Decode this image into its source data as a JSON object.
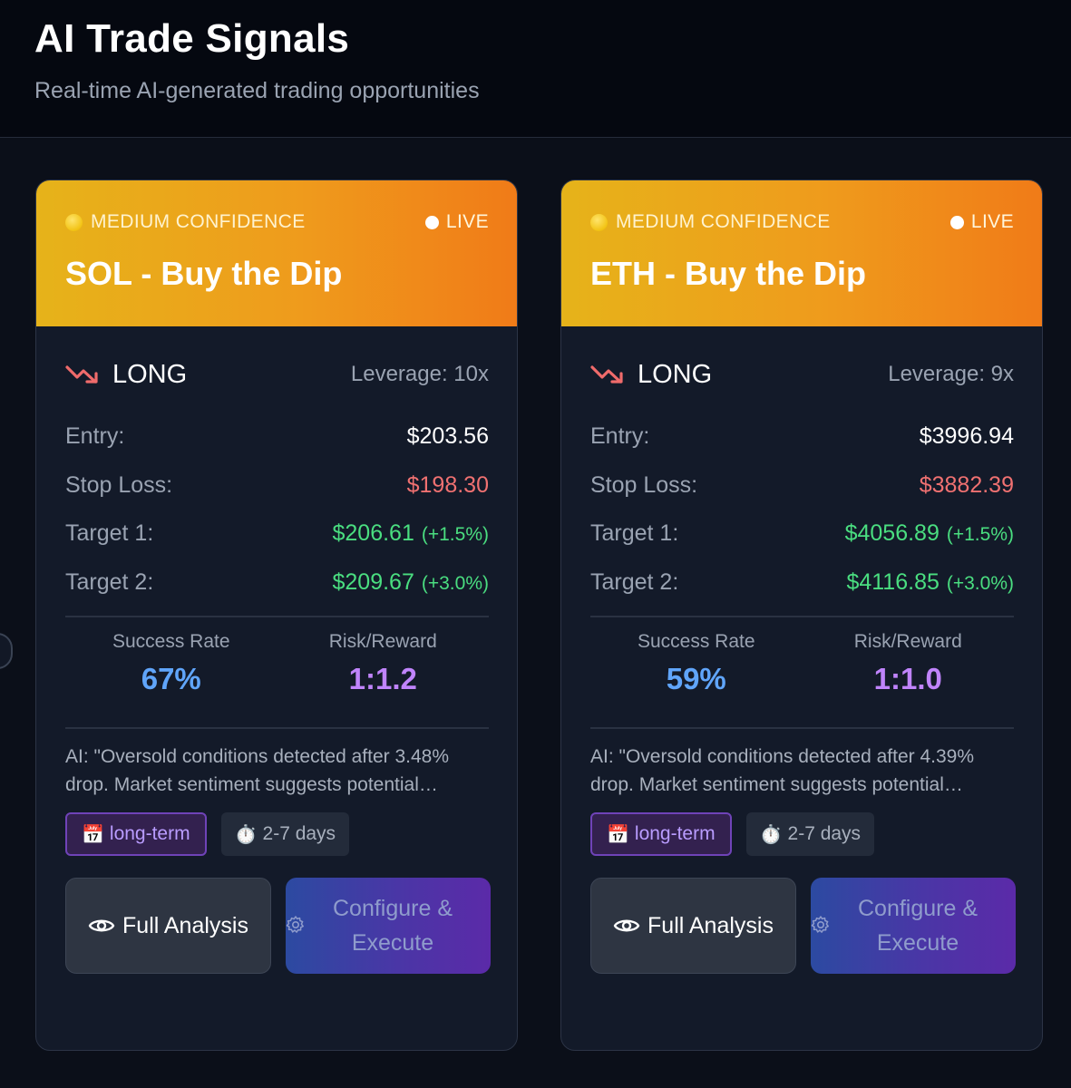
{
  "header": {
    "title": "AI Trade Signals",
    "subtitle": "Real-time AI-generated trading opportunities"
  },
  "cards": [
    {
      "confidence": "MEDIUM CONFIDENCE",
      "live": "LIVE",
      "title": "SOL - Buy the Dip",
      "direction": "LONG",
      "leverage": "Leverage: 10x",
      "entry_label": "Entry:",
      "entry": "$203.56",
      "stop_label": "Stop Loss:",
      "stop": "$198.30",
      "target1_label": "Target 1:",
      "target1": "$206.61",
      "target1_pct": "(+1.5%)",
      "target2_label": "Target 2:",
      "target2": "$209.67",
      "target2_pct": "(+3.0%)",
      "success_label": "Success Rate",
      "success": "67%",
      "rr_label": "Risk/Reward",
      "rr": "1:1.2",
      "ai_text": "AI: \"Oversold conditions detected after 3.48% drop. Market sentiment suggests potential…",
      "tag_term": "long-term",
      "tag_days": "2-7 days",
      "analysis_btn": "Full Analysis",
      "execute_btn": "Configure & Execute"
    },
    {
      "confidence": "MEDIUM CONFIDENCE",
      "live": "LIVE",
      "title": "ETH - Buy the Dip",
      "direction": "LONG",
      "leverage": "Leverage: 9x",
      "entry_label": "Entry:",
      "entry": "$3996.94",
      "stop_label": "Stop Loss:",
      "stop": "$3882.39",
      "target1_label": "Target 1:",
      "target1": "$4056.89",
      "target1_pct": "(+1.5%)",
      "target2_label": "Target 2:",
      "target2": "$4116.85",
      "target2_pct": "(+3.0%)",
      "success_label": "Success Rate",
      "success": "59%",
      "rr_label": "Risk/Reward",
      "rr": "1:1.0",
      "ai_text": "AI: \"Oversold conditions detected after 4.39% drop. Market sentiment suggests potential…",
      "tag_term": "long-term",
      "tag_days": "2-7 days",
      "analysis_btn": "Full Analysis",
      "execute_btn": "Configure & Execute"
    }
  ],
  "colors": {
    "header_gradient_start": "#e6b31a",
    "header_gradient_end": "#f07b18",
    "stop_loss": "#f07171",
    "target": "#4ade80",
    "success_rate": "#60a5fa",
    "risk_reward": "#c084fc"
  },
  "icons": {
    "confidence": "yellow-circle-icon",
    "live": "white-dot-icon",
    "direction": "trending-down-icon",
    "tag_term": "calendar-icon",
    "tag_days": "stopwatch-icon",
    "analysis": "eye-icon",
    "execute": "gear-icon"
  }
}
